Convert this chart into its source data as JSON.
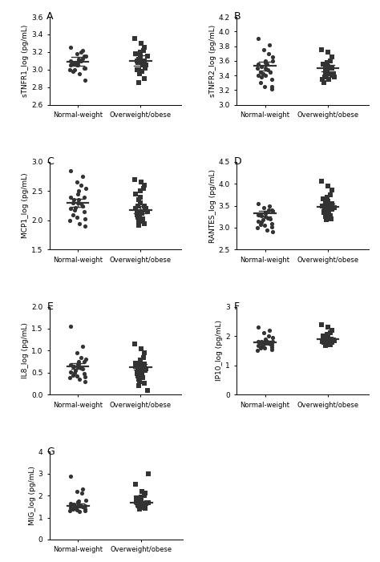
{
  "panels": [
    {
      "label": "A",
      "ylabel": "sTNFR1_log (pg/mL)",
      "ylim": [
        2.6,
        3.6
      ],
      "yticks": [
        2.6,
        2.8,
        3.0,
        3.2,
        3.4,
        3.6
      ],
      "group1_mean": 3.09,
      "group1_sem": 0.05,
      "group2_mean": 3.1,
      "group2_sem": 0.06,
      "group1_dots": [
        3.25,
        3.22,
        3.18,
        3.2,
        3.15,
        3.12,
        3.08,
        3.1,
        3.07,
        3.05,
        3.1,
        3.13,
        3.08,
        3.05,
        3.0,
        3.02,
        2.98,
        3.05,
        3.02,
        3.0,
        2.95,
        2.88,
        3.07,
        3.1,
        3.15
      ],
      "group2_dots": [
        3.35,
        3.3,
        3.25,
        3.22,
        3.2,
        3.18,
        3.15,
        3.12,
        3.1,
        3.08,
        3.05,
        3.02,
        3.0,
        2.98,
        3.1,
        3.12,
        3.08,
        3.05,
        3.0,
        2.95,
        2.9,
        2.85,
        3.15,
        3.18,
        3.1
      ],
      "marker1": "o",
      "marker2": "s"
    },
    {
      "label": "B",
      "ylabel": "sTNFR2_log (pg/mL)",
      "ylim": [
        3.0,
        4.2
      ],
      "yticks": [
        3.0,
        3.2,
        3.4,
        3.6,
        3.8,
        4.0,
        4.2
      ],
      "group1_mean": 3.53,
      "group1_sem": 0.06,
      "group2_mean": 3.5,
      "group2_sem": 0.04,
      "group1_dots": [
        3.9,
        3.82,
        3.75,
        3.7,
        3.65,
        3.6,
        3.58,
        3.55,
        3.52,
        3.5,
        3.48,
        3.45,
        3.42,
        3.4,
        3.38,
        3.35,
        3.3,
        3.25,
        3.22,
        3.5,
        3.55,
        3.6,
        3.45,
        3.4,
        3.25
      ],
      "group2_dots": [
        3.75,
        3.72,
        3.65,
        3.6,
        3.58,
        3.55,
        3.52,
        3.5,
        3.48,
        3.45,
        3.42,
        3.4,
        3.38,
        3.35,
        3.3,
        3.55,
        3.52,
        3.5,
        3.48,
        3.45,
        3.42,
        3.4,
        3.38,
        3.35,
        3.5
      ],
      "marker1": "o",
      "marker2": "s"
    },
    {
      "label": "C",
      "ylabel": "MCP1_log (pg/mL)",
      "ylim": [
        1.5,
        3.0
      ],
      "yticks": [
        1.5,
        2.0,
        2.5,
        3.0
      ],
      "group1_mean": 2.3,
      "group1_sem": 0.07,
      "group2_mean": 2.18,
      "group2_sem": 0.06,
      "group1_dots": [
        2.85,
        2.75,
        2.65,
        2.6,
        2.55,
        2.5,
        2.45,
        2.4,
        2.35,
        2.3,
        2.28,
        2.25,
        2.22,
        2.2,
        2.18,
        2.15,
        2.1,
        2.05,
        2.02,
        2.0,
        1.95,
        1.9,
        2.3,
        2.35,
        2.4
      ],
      "group2_dots": [
        2.7,
        2.65,
        2.6,
        2.55,
        2.5,
        2.45,
        2.4,
        2.35,
        2.3,
        2.25,
        2.2,
        2.18,
        2.15,
        2.12,
        2.1,
        2.08,
        2.05,
        2.02,
        2.0,
        1.98,
        1.95,
        1.92,
        2.15,
        2.2,
        2.25
      ],
      "marker1": "o",
      "marker2": "s"
    },
    {
      "label": "D",
      "ylabel": "RANTES_log (pg/mL)",
      "ylim": [
        2.5,
        4.5
      ],
      "yticks": [
        2.5,
        3.0,
        3.5,
        4.0,
        4.5
      ],
      "group1_mean": 3.32,
      "group1_sem": 0.06,
      "group2_mean": 3.48,
      "group2_sem": 0.06,
      "group1_dots": [
        3.55,
        3.5,
        3.45,
        3.4,
        3.38,
        3.35,
        3.32,
        3.3,
        3.28,
        3.25,
        3.22,
        3.2,
        3.18,
        3.15,
        3.12,
        3.1,
        3.08,
        3.05,
        3.02,
        3.0,
        2.95,
        2.9,
        3.3,
        3.35,
        3.4
      ],
      "group2_dots": [
        4.05,
        3.95,
        3.85,
        3.75,
        3.7,
        3.65,
        3.6,
        3.55,
        3.5,
        3.48,
        3.45,
        3.42,
        3.4,
        3.38,
        3.35,
        3.32,
        3.3,
        3.28,
        3.25,
        3.22,
        3.2,
        3.18,
        3.45,
        3.5,
        3.55
      ],
      "marker1": "o",
      "marker2": "s"
    },
    {
      "label": "E",
      "ylabel": "IL8_log (pg/mL)",
      "ylim": [
        0.0,
        2.0
      ],
      "yticks": [
        0.0,
        0.5,
        1.0,
        1.5,
        2.0
      ],
      "group1_mean": 0.65,
      "group1_sem": 0.07,
      "group2_mean": 0.63,
      "group2_sem": 0.06,
      "group1_dots": [
        1.55,
        1.1,
        0.95,
        0.85,
        0.8,
        0.75,
        0.7,
        0.68,
        0.65,
        0.63,
        0.6,
        0.58,
        0.55,
        0.52,
        0.5,
        0.48,
        0.45,
        0.42,
        0.4,
        0.38,
        0.35,
        0.3,
        0.65,
        0.7,
        0.75
      ],
      "group2_dots": [
        1.15,
        1.05,
        0.95,
        0.85,
        0.78,
        0.72,
        0.68,
        0.65,
        0.62,
        0.6,
        0.58,
        0.55,
        0.52,
        0.5,
        0.48,
        0.45,
        0.42,
        0.38,
        0.35,
        0.3,
        0.25,
        0.2,
        0.1,
        0.65,
        0.7
      ],
      "marker1": "o",
      "marker2": "s"
    },
    {
      "label": "F",
      "ylabel": "IP10_log (pg/mL)",
      "ylim": [
        0,
        3
      ],
      "yticks": [
        0,
        1,
        2,
        3
      ],
      "group1_mean": 1.78,
      "group1_sem": 0.05,
      "group2_mean": 1.9,
      "group2_sem": 0.05,
      "group1_dots": [
        2.3,
        2.2,
        2.1,
        2.0,
        1.95,
        1.9,
        1.85,
        1.82,
        1.8,
        1.78,
        1.75,
        1.72,
        1.7,
        1.68,
        1.65,
        1.62,
        1.6,
        1.58,
        1.55,
        1.52,
        1.8,
        1.82,
        1.78,
        1.75,
        1.7
      ],
      "group2_dots": [
        2.4,
        2.3,
        2.2,
        2.1,
        2.05,
        2.0,
        1.98,
        1.95,
        1.92,
        1.9,
        1.88,
        1.85,
        1.82,
        1.8,
        1.78,
        1.75,
        1.72,
        1.7,
        1.68,
        1.92,
        1.9,
        1.88,
        1.85,
        1.82,
        1.78
      ],
      "marker1": "o",
      "marker2": "s"
    },
    {
      "label": "G",
      "ylabel": "MIG_log (pg/mL)",
      "ylim": [
        0,
        4
      ],
      "yticks": [
        0,
        1,
        2,
        3,
        4
      ],
      "group1_mean": 1.55,
      "group1_sem": 0.08,
      "group2_mean": 1.68,
      "group2_sem": 0.08,
      "group1_dots": [
        2.9,
        2.3,
        2.2,
        2.1,
        1.8,
        1.75,
        1.7,
        1.65,
        1.6,
        1.55,
        1.52,
        1.5,
        1.48,
        1.45,
        1.42,
        1.4,
        1.38,
        1.35,
        1.32,
        1.3,
        1.28,
        1.55,
        1.58,
        1.6
      ],
      "group2_dots": [
        3.0,
        2.5,
        2.2,
        2.1,
        2.0,
        1.95,
        1.9,
        1.85,
        1.8,
        1.75,
        1.7,
        1.68,
        1.65,
        1.62,
        1.6,
        1.58,
        1.55,
        1.52,
        1.5,
        1.48,
        1.45,
        1.42,
        1.4,
        1.68,
        1.7
      ],
      "marker1": "o",
      "marker2": "s"
    }
  ],
  "group_labels": [
    "Normal-weight",
    "Overweight/obese"
  ],
  "dot_color": "#333333",
  "dot_size": 14,
  "line_color": "#333333",
  "line_width": 1.0,
  "font_size": 6.5,
  "panel_label_size": 9
}
